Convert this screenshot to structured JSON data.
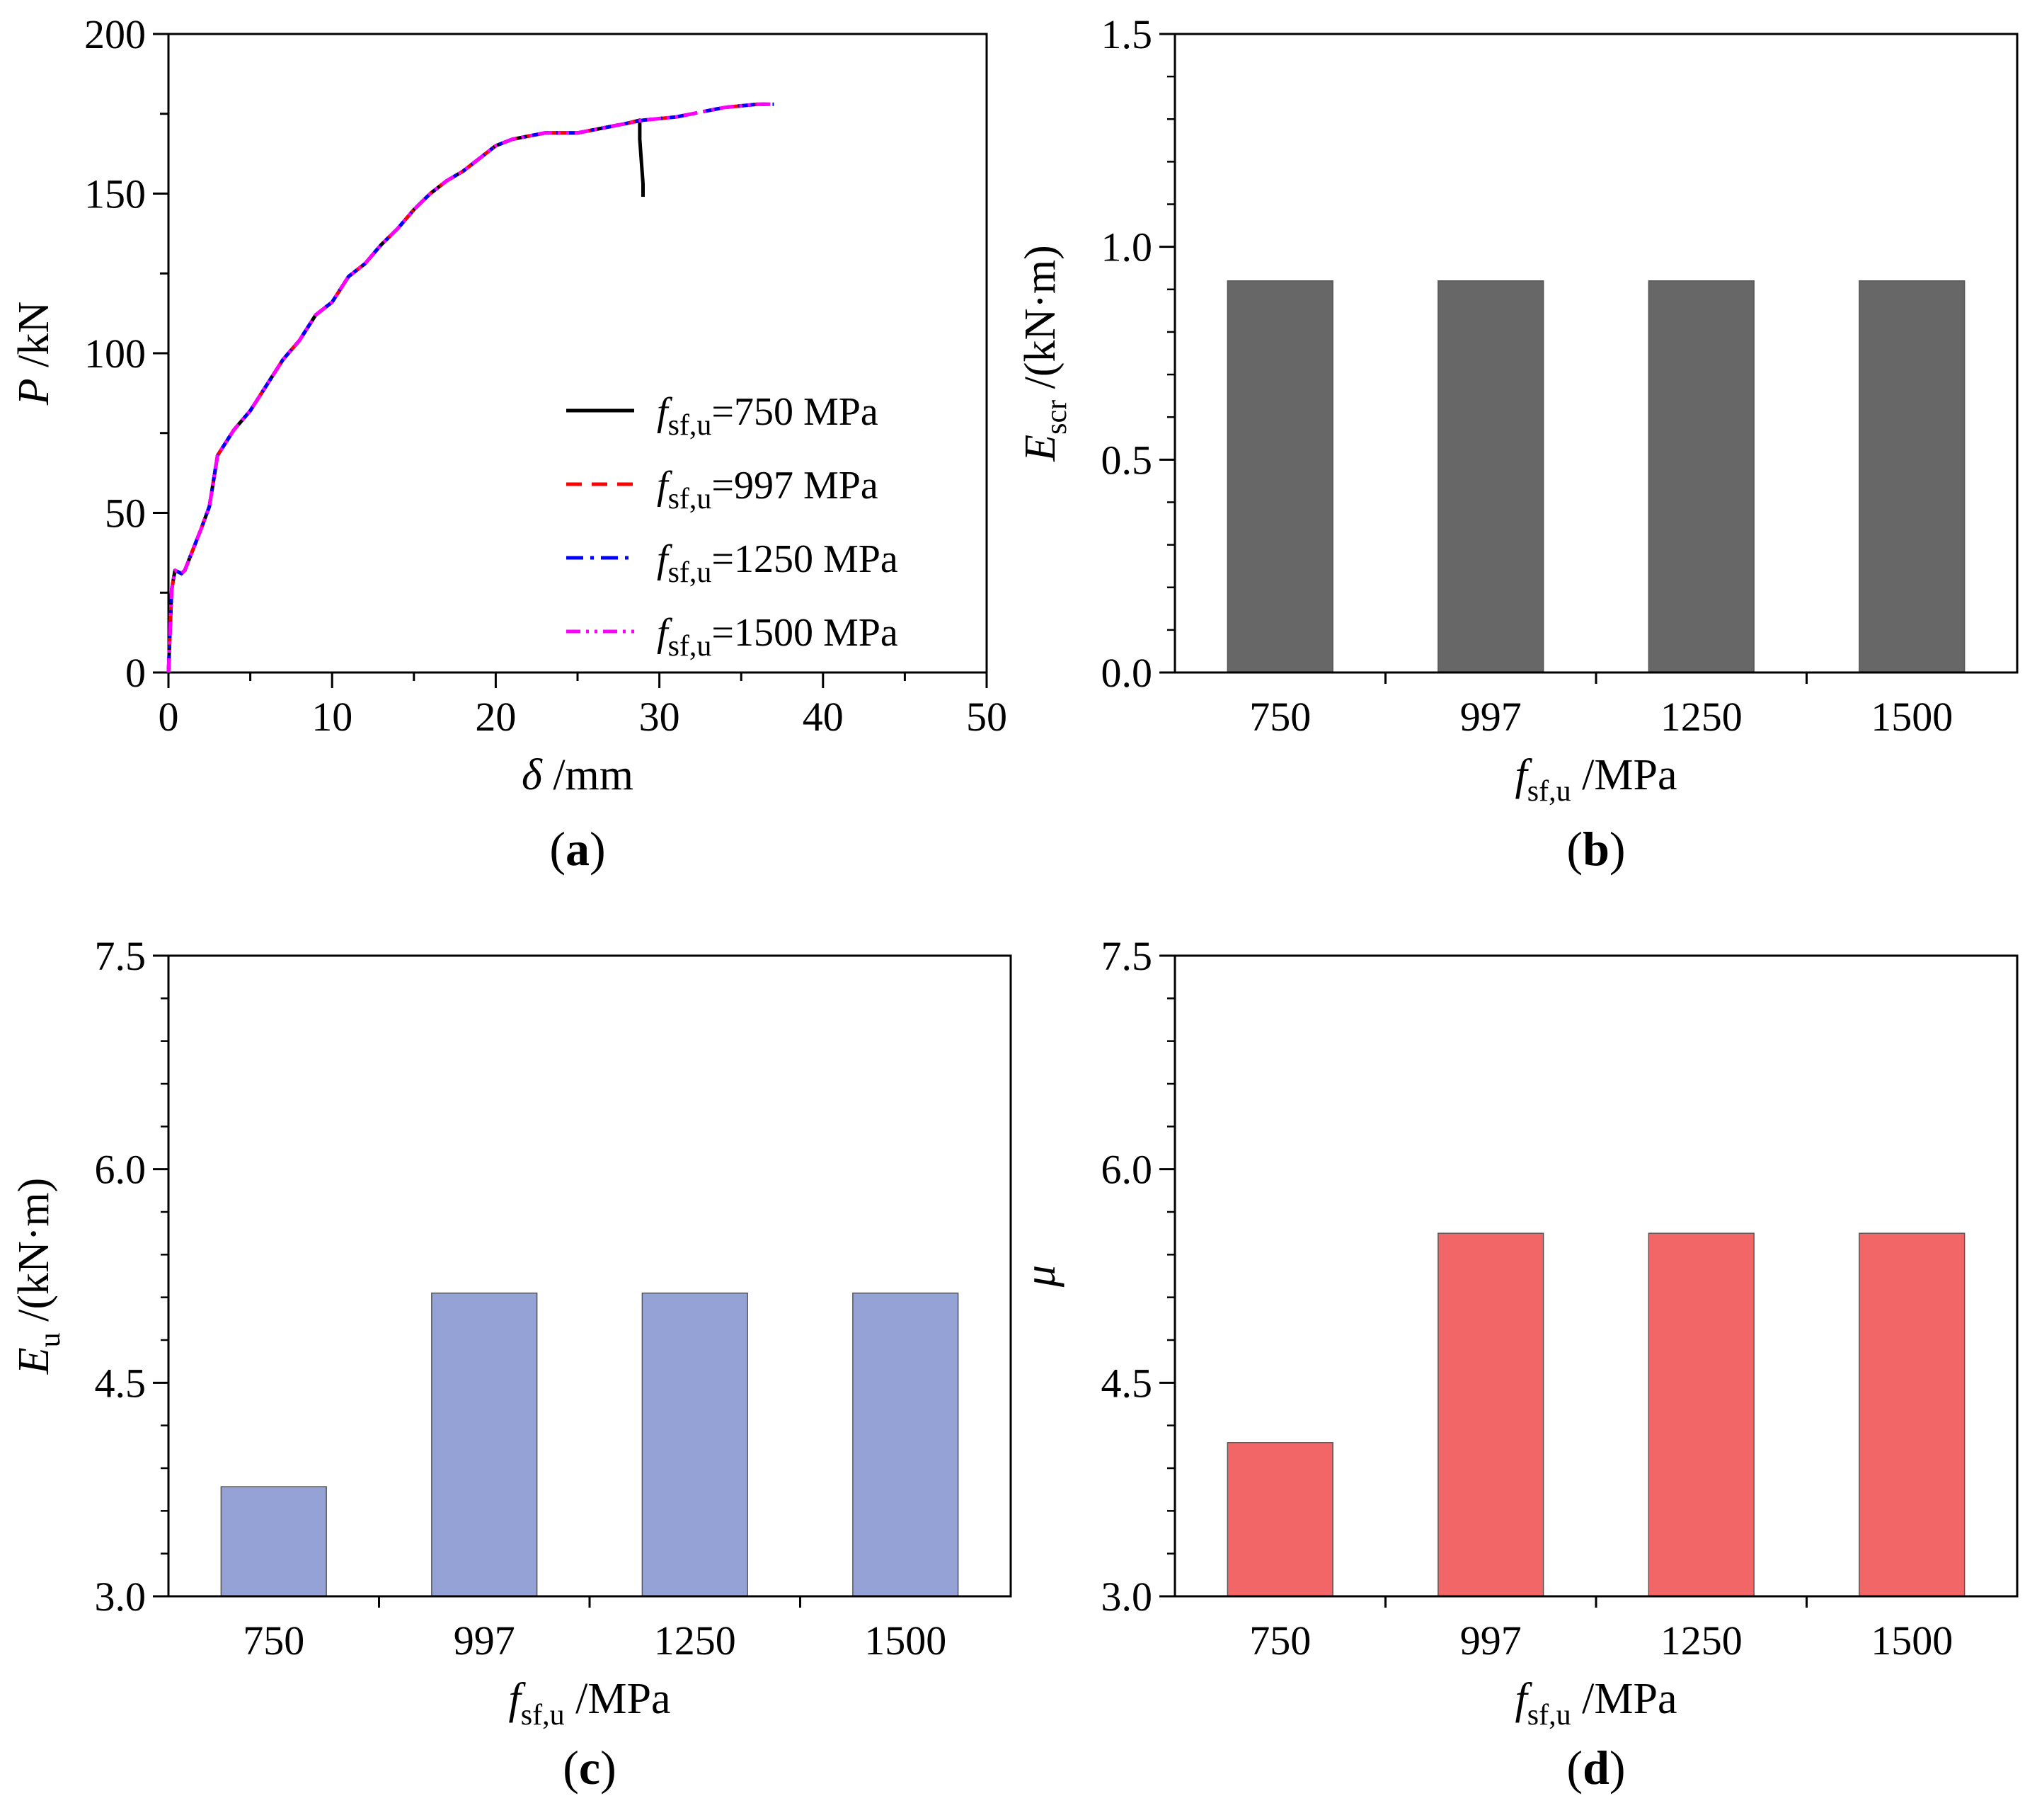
{
  "chart_data": [
    {
      "panel": "(a)",
      "panel_letter": "a",
      "type": "line",
      "xlabel": {
        "symbol": "δ",
        "unit": " /mm"
      },
      "ylabel": {
        "symbol": "P",
        "unit": " /kN"
      },
      "xlim": [
        0,
        50
      ],
      "ylim": [
        0,
        200
      ],
      "xticks": [
        0,
        10,
        20,
        30,
        40,
        50
      ],
      "yticks": [
        0,
        50,
        100,
        150,
        200
      ],
      "legend_position": "bottom-right",
      "series": [
        {
          "name": "f_sf,u=750 MPa",
          "sym": "f",
          "sub": "sf,u",
          "label": "=750 MPa",
          "color": "#000000",
          "dash": "solid",
          "points": [
            [
              0,
              0
            ],
            [
              0.2,
              26
            ],
            [
              0.4,
              32
            ],
            [
              0.8,
              31
            ],
            [
              1,
              32
            ],
            [
              2,
              45
            ],
            [
              2.5,
              52
            ],
            [
              3,
              68
            ],
            [
              4,
              76
            ],
            [
              5,
              82
            ],
            [
              6,
              90
            ],
            [
              7,
              98
            ],
            [
              8,
              104
            ],
            [
              9,
              112
            ],
            [
              10,
              116
            ],
            [
              11,
              124
            ],
            [
              12,
              128
            ],
            [
              13,
              134
            ],
            [
              14,
              139
            ],
            [
              15,
              145
            ],
            [
              16,
              150
            ],
            [
              17,
              154
            ],
            [
              18,
              157
            ],
            [
              19,
              161
            ],
            [
              20,
              165
            ],
            [
              21,
              167
            ],
            [
              22,
              168
            ],
            [
              23,
              169
            ],
            [
              24,
              169
            ],
            [
              25,
              169
            ],
            [
              26,
              170
            ],
            [
              27,
              171
            ],
            [
              28,
              172
            ],
            [
              28.8,
              173
            ],
            [
              28.8,
              167
            ],
            [
              28.9,
              160
            ],
            [
              29,
              153
            ],
            [
              29,
              149
            ]
          ]
        },
        {
          "name": "f_sf,u=997 MPa",
          "sym": "f",
          "sub": "sf,u",
          "label": "=997 MPa",
          "color": "#ff0000",
          "dash": "dash",
          "points": [
            [
              0,
              0
            ],
            [
              0.2,
              26
            ],
            [
              0.4,
              32
            ],
            [
              0.8,
              31
            ],
            [
              1,
              32
            ],
            [
              2,
              45
            ],
            [
              2.5,
              52
            ],
            [
              3,
              68
            ],
            [
              4,
              76
            ],
            [
              5,
              82
            ],
            [
              6,
              90
            ],
            [
              7,
              98
            ],
            [
              8,
              104
            ],
            [
              9,
              112
            ],
            [
              10,
              116
            ],
            [
              11,
              124
            ],
            [
              12,
              128
            ],
            [
              13,
              134
            ],
            [
              14,
              139
            ],
            [
              15,
              145
            ],
            [
              16,
              150
            ],
            [
              17,
              154
            ],
            [
              18,
              157
            ],
            [
              19,
              161
            ],
            [
              20,
              165
            ],
            [
              21,
              167
            ],
            [
              22,
              168
            ],
            [
              23,
              169
            ],
            [
              24,
              169
            ],
            [
              25,
              169
            ],
            [
              26,
              170
            ],
            [
              27,
              171
            ],
            [
              28,
              172
            ],
            [
              29,
              173
            ],
            [
              30,
              173.5
            ],
            [
              31,
              174
            ],
            [
              32,
              175
            ],
            [
              33,
              176
            ],
            [
              34,
              177
            ],
            [
              35,
              177.5
            ],
            [
              36,
              178
            ],
            [
              37,
              178
            ]
          ]
        },
        {
          "name": "f_sf,u=1250 MPa",
          "sym": "f",
          "sub": "sf,u",
          "label": "=1250 MPa",
          "color": "#0000ff",
          "dash": "dashdot",
          "points": [
            [
              0,
              0
            ],
            [
              0.2,
              26
            ],
            [
              0.4,
              32
            ],
            [
              0.8,
              31
            ],
            [
              1,
              32
            ],
            [
              2,
              45
            ],
            [
              2.5,
              52
            ],
            [
              3,
              68
            ],
            [
              4,
              76
            ],
            [
              5,
              82
            ],
            [
              6,
              90
            ],
            [
              7,
              98
            ],
            [
              8,
              104
            ],
            [
              9,
              112
            ],
            [
              10,
              116
            ],
            [
              11,
              124
            ],
            [
              12,
              128
            ],
            [
              13,
              134
            ],
            [
              14,
              139
            ],
            [
              15,
              145
            ],
            [
              16,
              150
            ],
            [
              17,
              154
            ],
            [
              18,
              157
            ],
            [
              19,
              161
            ],
            [
              20,
              165
            ],
            [
              21,
              167
            ],
            [
              22,
              168
            ],
            [
              23,
              169
            ],
            [
              24,
              169
            ],
            [
              25,
              169
            ],
            [
              26,
              170
            ],
            [
              27,
              171
            ],
            [
              28,
              172
            ],
            [
              29,
              173
            ],
            [
              30,
              173.5
            ],
            [
              31,
              174
            ],
            [
              32,
              175
            ],
            [
              33,
              176
            ],
            [
              34,
              177
            ],
            [
              35,
              177.5
            ],
            [
              36,
              178
            ],
            [
              37,
              178
            ]
          ]
        },
        {
          "name": "f_sf,u=1500 MPa",
          "sym": "f",
          "sub": "sf,u",
          "label": "=1500 MPa",
          "color": "#ff00ff",
          "dash": "dashdotdot",
          "points": [
            [
              0,
              0
            ],
            [
              0.2,
              26
            ],
            [
              0.4,
              32
            ],
            [
              0.8,
              31
            ],
            [
              1,
              32
            ],
            [
              2,
              45
            ],
            [
              2.5,
              52
            ],
            [
              3,
              68
            ],
            [
              4,
              76
            ],
            [
              5,
              82
            ],
            [
              6,
              90
            ],
            [
              7,
              98
            ],
            [
              8,
              104
            ],
            [
              9,
              112
            ],
            [
              10,
              116
            ],
            [
              11,
              124
            ],
            [
              12,
              128
            ],
            [
              13,
              134
            ],
            [
              14,
              139
            ],
            [
              15,
              145
            ],
            [
              16,
              150
            ],
            [
              17,
              154
            ],
            [
              18,
              157
            ],
            [
              19,
              161
            ],
            [
              20,
              165
            ],
            [
              21,
              167
            ],
            [
              22,
              168
            ],
            [
              23,
              169
            ],
            [
              24,
              169
            ],
            [
              25,
              169
            ],
            [
              26,
              170
            ],
            [
              27,
              171
            ],
            [
              28,
              172
            ],
            [
              29,
              173
            ],
            [
              30,
              173.5
            ],
            [
              31,
              174
            ],
            [
              32,
              175
            ],
            [
              33,
              176
            ],
            [
              34,
              177
            ],
            [
              35,
              177.5
            ],
            [
              36,
              178
            ],
            [
              37,
              178
            ]
          ]
        }
      ]
    },
    {
      "panel": "(b)",
      "panel_letter": "b",
      "type": "bar",
      "categories": [
        "750",
        "997",
        "1250",
        "1500"
      ],
      "values": [
        0.92,
        0.92,
        0.92,
        0.92
      ],
      "bar_color": "#676767",
      "xlabel": {
        "symbol": "f",
        "sub": "sf,u",
        "unit": " /MPa"
      },
      "ylabel": {
        "symbol": "E",
        "sub": "scr",
        "unit": " /(kN·m)"
      },
      "ylim": [
        0,
        1.5
      ],
      "yticks": [
        "0.0",
        "0.5",
        "1.0",
        "1.5"
      ]
    },
    {
      "panel": "(c)",
      "panel_letter": "c",
      "type": "bar",
      "categories": [
        "750",
        "997",
        "1250",
        "1500"
      ],
      "values": [
        3.77,
        5.13,
        5.13,
        5.13
      ],
      "bar_color": "#94a2d6",
      "xlabel": {
        "symbol": "f",
        "sub": "sf,u",
        "unit": " /MPa"
      },
      "ylabel": {
        "symbol": "E",
        "sub": "u",
        "unit": " /(kN·m)"
      },
      "ylim": [
        3.0,
        7.5
      ],
      "yticks": [
        "3.0",
        "4.5",
        "6.0",
        "7.5"
      ]
    },
    {
      "panel": "(d)",
      "panel_letter": "d",
      "type": "bar",
      "categories": [
        "750",
        "997",
        "1250",
        "1500"
      ],
      "values": [
        4.08,
        5.55,
        5.55,
        5.55
      ],
      "bar_color": "#f26668",
      "xlabel": {
        "symbol": "f",
        "sub": "sf,u",
        "unit": " /MPa"
      },
      "ylabel": {
        "symbol": "μ",
        "sub": "",
        "unit": ""
      },
      "ylim": [
        3.0,
        7.5
      ],
      "yticks": [
        "3.0",
        "4.5",
        "6.0",
        "7.5"
      ]
    }
  ]
}
